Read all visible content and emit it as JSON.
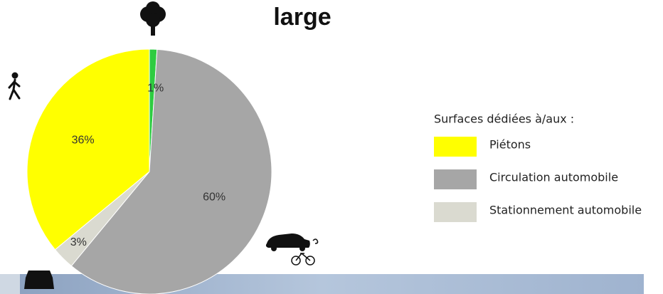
{
  "chart_data": {
    "type": "pie",
    "title": "large",
    "categories": [
      null,
      "Circulation automobile",
      "Stationnement automobile",
      "Piétons"
    ],
    "values": [
      1,
      60,
      3,
      36
    ],
    "value_labels": [
      "1%",
      "60%",
      "3%",
      "36%"
    ],
    "colors": [
      "#2ecc40",
      "#a6a6a6",
      "#dadad0",
      "#ffff00"
    ],
    "legend_title": "Surfaces dédiées à/aux :"
  }
}
